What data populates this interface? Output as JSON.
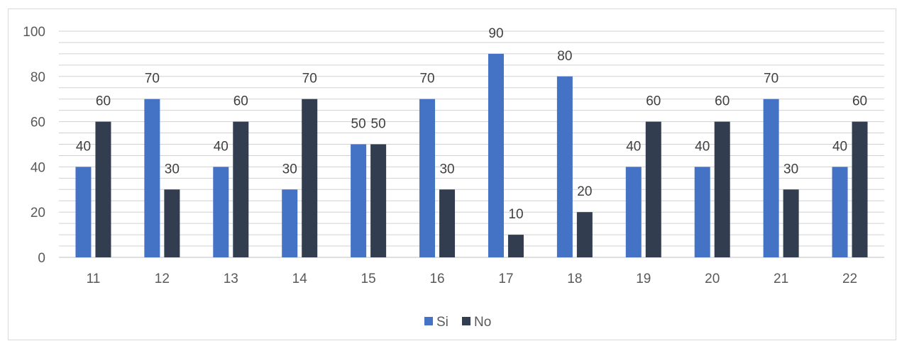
{
  "chart_data": {
    "type": "bar",
    "categories": [
      "11",
      "12",
      "13",
      "14",
      "15",
      "16",
      "17",
      "18",
      "19",
      "20",
      "21",
      "22"
    ],
    "series": [
      {
        "name": "Si",
        "color": "#4472c4",
        "values": [
          40,
          70,
          40,
          30,
          50,
          70,
          90,
          80,
          40,
          40,
          70,
          40
        ]
      },
      {
        "name": "No",
        "color": "#323e4f",
        "values": [
          60,
          30,
          60,
          70,
          50,
          30,
          10,
          20,
          60,
          60,
          30,
          60
        ]
      }
    ],
    "ylim": [
      0,
      100
    ],
    "yticks": [
      "0",
      "20",
      "40",
      "60",
      "80",
      "100"
    ],
    "ytick_values": [
      0,
      20,
      40,
      60,
      80,
      100
    ],
    "minor_grid_step": 5,
    "grid": true,
    "legend_position": "bottom",
    "data_labels": true
  }
}
